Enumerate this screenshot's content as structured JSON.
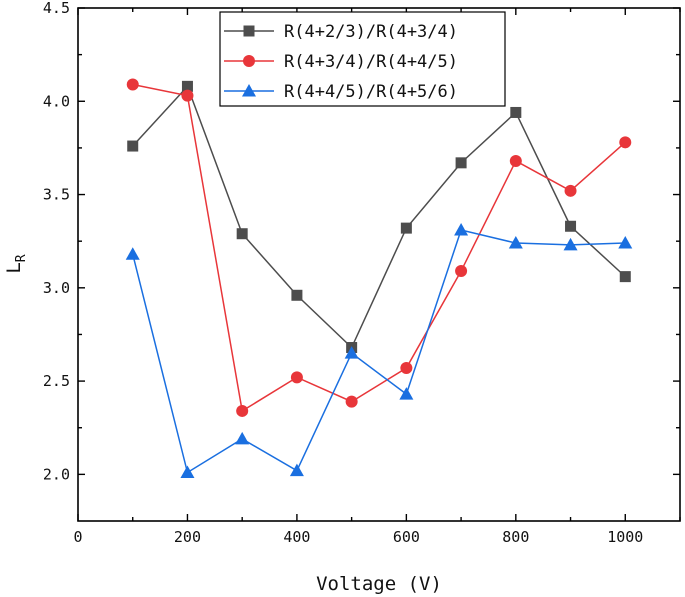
{
  "chart_data": {
    "type": "line",
    "title": "",
    "xlabel": "Voltage (V)",
    "ylabel_main": "L",
    "ylabel_sub": "R",
    "xlim": [
      0,
      1100
    ],
    "ylim": [
      1.75,
      4.5
    ],
    "xticks": [
      0,
      200,
      400,
      600,
      800,
      1000
    ],
    "xtick_labels": [
      "0",
      "200",
      "400",
      "600",
      "800",
      "1000"
    ],
    "yticks": [
      2.0,
      2.5,
      3.0,
      3.5,
      4.0,
      4.5
    ],
    "ytick_labels": [
      "2.0",
      "2.5",
      "3.0",
      "3.5",
      "4.0",
      "4.5"
    ],
    "grid": false,
    "legend_position": "top-center",
    "x": [
      100,
      200,
      300,
      400,
      500,
      600,
      700,
      800,
      900,
      1000
    ],
    "series": [
      {
        "name": "R(4+2/3)/R(4+3/4)",
        "color": "#4d4d4d",
        "marker": "square",
        "values": [
          3.76,
          4.08,
          3.29,
          2.96,
          2.68,
          3.32,
          3.67,
          3.94,
          3.33,
          3.06
        ]
      },
      {
        "name": "R(4+3/4)/R(4+4/5)",
        "color": "#e8363a",
        "marker": "circle",
        "values": [
          4.09,
          4.03,
          2.34,
          2.52,
          2.39,
          2.57,
          3.09,
          3.68,
          3.52,
          3.78
        ]
      },
      {
        "name": "R(4+4/5)/R(4+5/6)",
        "color": "#1a6fe0",
        "marker": "triangle",
        "values": [
          3.18,
          2.01,
          2.19,
          2.02,
          2.65,
          2.43,
          3.31,
          3.24,
          3.23,
          3.24
        ]
      }
    ]
  }
}
